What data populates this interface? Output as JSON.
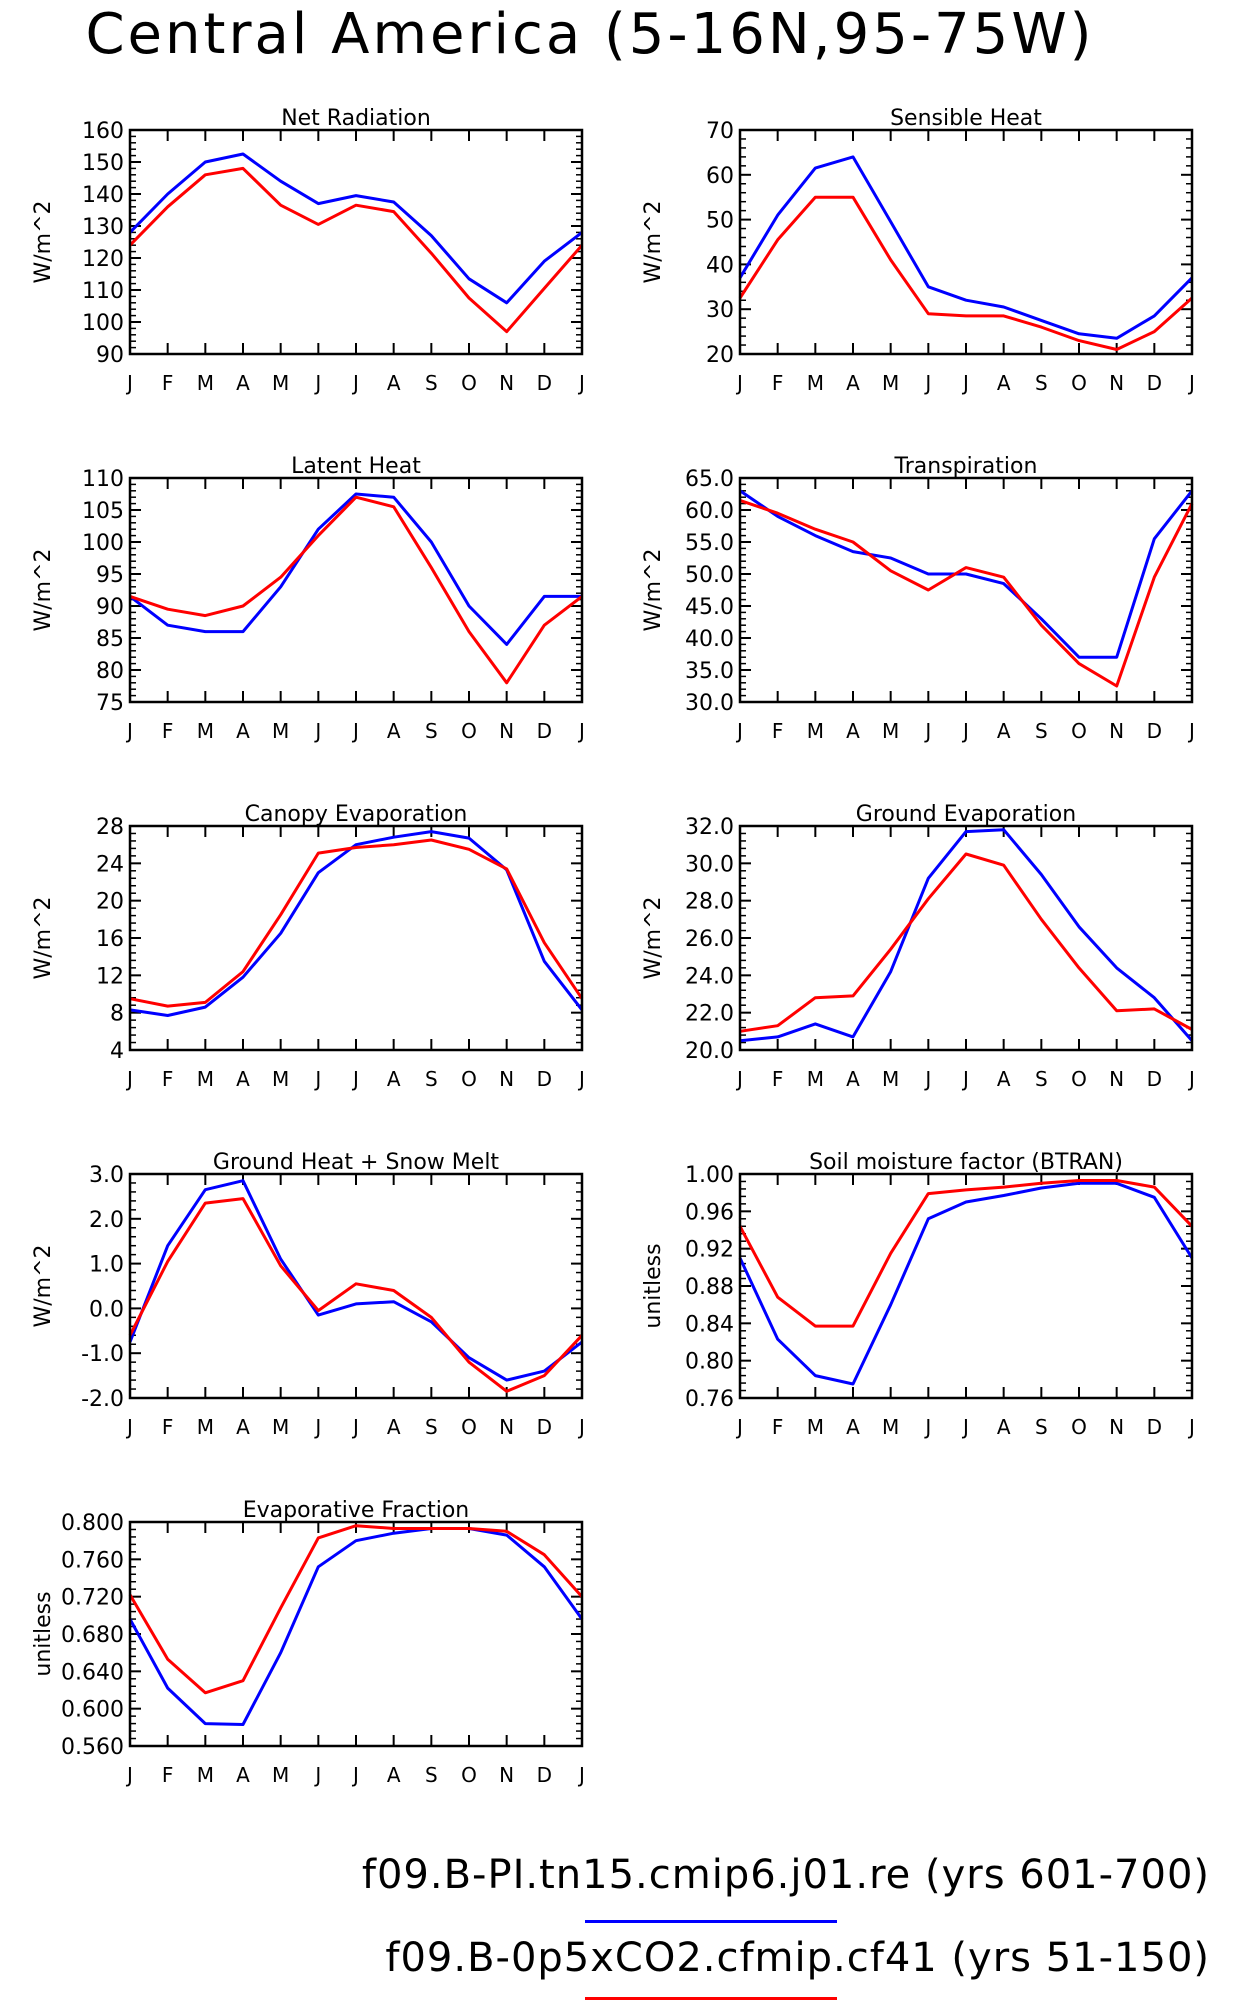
{
  "title": "Central America (5-16N,95-75W)",
  "months": [
    "J",
    "F",
    "M",
    "A",
    "M",
    "J",
    "J",
    "A",
    "S",
    "O",
    "N",
    "D",
    "J"
  ],
  "legend": [
    {
      "label": "f09.B-PI.tn15.cmip6.j01.re (yrs 601-700)",
      "color": "#0000ff"
    },
    {
      "label": "f09.B-0p5xCO2.cfmip.cf41 (yrs 51-150)",
      "color": "#ff0000"
    }
  ],
  "colors": {
    "blue": "#0000ff",
    "red": "#ff0000"
  },
  "chart_data": [
    {
      "type": "line",
      "title": "Net Radiation",
      "ylabel": "W/m^2",
      "ylim": [
        90,
        160
      ],
      "yticks": [
        90,
        100,
        110,
        120,
        130,
        140,
        150,
        160
      ],
      "decimals": 0,
      "series": [
        {
          "color": "#0000ff",
          "values": [
            128,
            140,
            150,
            152.5,
            144,
            137,
            139.5,
            137.5,
            127,
            113.5,
            106,
            119,
            128
          ]
        },
        {
          "color": "#ff0000",
          "values": [
            124,
            136,
            146,
            148,
            136.5,
            130.5,
            136.5,
            134.5,
            121.5,
            107.5,
            97,
            110.5,
            124
          ]
        }
      ]
    },
    {
      "type": "line",
      "title": "Sensible Heat",
      "ylabel": "W/m^2",
      "ylim": [
        20,
        70
      ],
      "yticks": [
        20,
        30,
        40,
        50,
        60,
        70
      ],
      "decimals": 0,
      "series": [
        {
          "color": "#0000ff",
          "values": [
            37,
            51,
            61.5,
            64,
            49.5,
            35,
            32,
            30.5,
            27.5,
            24.5,
            23.5,
            28.5,
            37
          ]
        },
        {
          "color": "#ff0000",
          "values": [
            32.5,
            45.5,
            55,
            55,
            41,
            29,
            28.5,
            28.5,
            26,
            23,
            21,
            25,
            32.5
          ]
        }
      ]
    },
    {
      "type": "line",
      "title": "Latent Heat",
      "ylabel": "W/m^2",
      "ylim": [
        75,
        110
      ],
      "yticks": [
        75,
        80,
        85,
        90,
        95,
        100,
        105,
        110
      ],
      "decimals": 0,
      "series": [
        {
          "color": "#0000ff",
          "values": [
            91.5,
            87,
            86,
            86,
            93,
            102,
            107.5,
            107,
            100,
            90,
            84,
            91.5,
            91.5
          ]
        },
        {
          "color": "#ff0000",
          "values": [
            91.5,
            89.5,
            88.5,
            90,
            94.5,
            101,
            107,
            105.5,
            96,
            86,
            78,
            87,
            91.5
          ]
        }
      ]
    },
    {
      "type": "line",
      "title": "Transpiration",
      "ylabel": "W/m^2",
      "ylim": [
        30,
        65
      ],
      "yticks": [
        30,
        35,
        40,
        45,
        50,
        55,
        60,
        65
      ],
      "decimals": 1,
      "series": [
        {
          "color": "#0000ff",
          "values": [
            63,
            59,
            56,
            53.5,
            52.5,
            50,
            50,
            48.5,
            43,
            37,
            37,
            55.5,
            63
          ]
        },
        {
          "color": "#ff0000",
          "values": [
            61.5,
            59.5,
            57,
            55,
            50.5,
            47.5,
            51,
            49.5,
            42,
            36,
            32.5,
            49.5,
            61
          ]
        }
      ]
    },
    {
      "type": "line",
      "title": "Canopy Evaporation",
      "ylabel": "W/m^2",
      "ylim": [
        4,
        28
      ],
      "yticks": [
        4,
        8,
        12,
        16,
        20,
        24,
        28
      ],
      "decimals": 0,
      "series": [
        {
          "color": "#0000ff",
          "values": [
            8.3,
            7.7,
            8.6,
            11.8,
            16.5,
            23,
            26,
            26.8,
            27.4,
            26.7,
            23.3,
            13.5,
            8.3
          ]
        },
        {
          "color": "#ff0000",
          "values": [
            9.5,
            8.7,
            9.1,
            12.4,
            18.5,
            25.1,
            25.7,
            26,
            26.5,
            25.5,
            23.4,
            15.5,
            9.5
          ]
        }
      ]
    },
    {
      "type": "line",
      "title": "Ground Evaporation",
      "ylabel": "W/m^2",
      "ylim": [
        20,
        32
      ],
      "yticks": [
        20,
        22,
        24,
        26,
        28,
        30,
        32
      ],
      "decimals": 1,
      "series": [
        {
          "color": "#0000ff",
          "values": [
            20.5,
            20.7,
            21.4,
            20.7,
            24.2,
            29.2,
            31.7,
            31.8,
            29.4,
            26.6,
            24.4,
            22.8,
            20.5
          ]
        },
        {
          "color": "#ff0000",
          "values": [
            21,
            21.3,
            22.8,
            22.9,
            25.4,
            28.1,
            30.5,
            29.9,
            27,
            24.4,
            22.1,
            22.2,
            21.1
          ]
        }
      ]
    },
    {
      "type": "line",
      "title": "Ground Heat + Snow Melt",
      "ylabel": "W/m^2",
      "ylim": [
        -2,
        3
      ],
      "yticks": [
        -2,
        -1,
        0,
        1,
        2,
        3
      ],
      "decimals": 1,
      "series": [
        {
          "color": "#0000ff",
          "values": [
            -0.75,
            1.4,
            2.65,
            2.85,
            1.1,
            -0.15,
            0.1,
            0.15,
            -0.3,
            -1.1,
            -1.6,
            -1.4,
            -0.75
          ]
        },
        {
          "color": "#ff0000",
          "values": [
            -0.6,
            1.05,
            2.35,
            2.45,
            0.95,
            -0.05,
            0.55,
            0.4,
            -0.2,
            -1.2,
            -1.85,
            -1.5,
            -0.6
          ]
        }
      ]
    },
    {
      "type": "line",
      "title": "Soil moisture factor (BTRAN)",
      "ylabel": "unitless",
      "ylim": [
        0.76,
        1.0
      ],
      "yticks": [
        0.76,
        0.8,
        0.84,
        0.88,
        0.92,
        0.96,
        1.0
      ],
      "decimals": 2,
      "series": [
        {
          "color": "#0000ff",
          "values": [
            0.91,
            0.823,
            0.784,
            0.775,
            0.86,
            0.952,
            0.97,
            0.977,
            0.985,
            0.99,
            0.99,
            0.975,
            0.91
          ]
        },
        {
          "color": "#ff0000",
          "values": [
            0.944,
            0.868,
            0.837,
            0.837,
            0.915,
            0.979,
            0.983,
            0.986,
            0.99,
            0.993,
            0.993,
            0.986,
            0.944
          ]
        }
      ]
    },
    {
      "type": "line",
      "title": "Evaporative Fraction",
      "ylabel": "unitless",
      "ylim": [
        0.56,
        0.8
      ],
      "yticks": [
        0.56,
        0.6,
        0.64,
        0.68,
        0.72,
        0.76,
        0.8
      ],
      "decimals": 3,
      "series": [
        {
          "color": "#0000ff",
          "values": [
            0.696,
            0.622,
            0.584,
            0.583,
            0.66,
            0.752,
            0.78,
            0.788,
            0.793,
            0.793,
            0.786,
            0.752,
            0.696
          ]
        },
        {
          "color": "#ff0000",
          "values": [
            0.722,
            0.653,
            0.617,
            0.63,
            0.708,
            0.783,
            0.796,
            0.793,
            0.793,
            0.793,
            0.79,
            0.765,
            0.72
          ]
        }
      ]
    }
  ]
}
